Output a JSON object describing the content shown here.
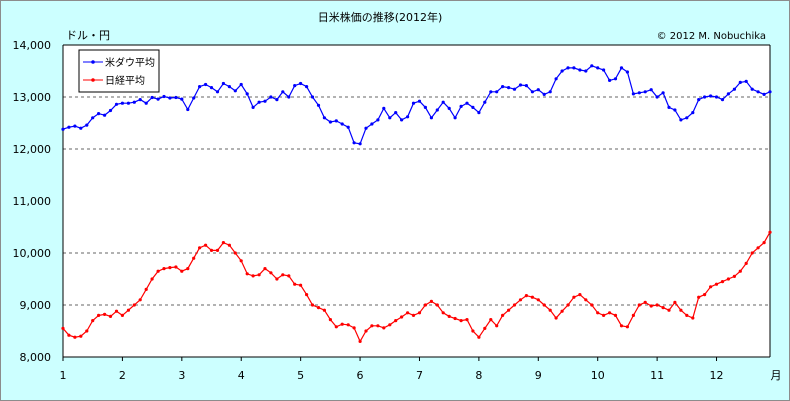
{
  "chart_data": {
    "type": "line",
    "title": "日米株価の推移(2012年)",
    "copyright": "© 2012 M. Nobuchika",
    "ylabel": "ドル・円",
    "xlabel": "月",
    "ylim": [
      8000,
      14000
    ],
    "y_ticks": [
      "8,000",
      "9,000",
      "10,000",
      "11,000",
      "12,000",
      "13,000",
      "14,000"
    ],
    "y_tick_values": [
      8000,
      9000,
      10000,
      11000,
      12000,
      13000,
      14000
    ],
    "x_ticks": [
      "1",
      "2",
      "3",
      "4",
      "5",
      "6",
      "7",
      "8",
      "9",
      "10",
      "11",
      "12"
    ],
    "x_tick_values": [
      1,
      2,
      3,
      4,
      5,
      6,
      7,
      8,
      9,
      10,
      11,
      12
    ],
    "xlim": [
      1,
      12.9
    ],
    "grid": "horizontal dashed at 9,000 / 10,000 / 12,000 / 13,000",
    "legend_position": "top-left",
    "series": [
      {
        "name": "米ダウ平均",
        "color": "#0000ff",
        "x": [
          1.0,
          1.1,
          1.2,
          1.3,
          1.4,
          1.5,
          1.6,
          1.7,
          1.8,
          1.9,
          2.0,
          2.1,
          2.2,
          2.3,
          2.4,
          2.5,
          2.6,
          2.7,
          2.8,
          2.9,
          3.0,
          3.1,
          3.2,
          3.3,
          3.4,
          3.5,
          3.6,
          3.7,
          3.8,
          3.9,
          4.0,
          4.1,
          4.2,
          4.3,
          4.4,
          4.5,
          4.6,
          4.7,
          4.8,
          4.9,
          5.0,
          5.1,
          5.2,
          5.3,
          5.4,
          5.5,
          5.6,
          5.7,
          5.8,
          5.9,
          6.0,
          6.1,
          6.2,
          6.3,
          6.4,
          6.5,
          6.6,
          6.7,
          6.8,
          6.9,
          7.0,
          7.1,
          7.2,
          7.3,
          7.4,
          7.5,
          7.6,
          7.7,
          7.8,
          7.9,
          8.0,
          8.1,
          8.2,
          8.3,
          8.4,
          8.5,
          8.6,
          8.7,
          8.8,
          8.9,
          9.0,
          9.1,
          9.2,
          9.3,
          9.4,
          9.5,
          9.6,
          9.7,
          9.8,
          9.9,
          10.0,
          10.1,
          10.2,
          10.3,
          10.4,
          10.5,
          10.6,
          10.7,
          10.8,
          10.9,
          11.0,
          11.1,
          11.2,
          11.3,
          11.4,
          11.5,
          11.6,
          11.7,
          11.8,
          11.9,
          12.0,
          12.1,
          12.2,
          12.3,
          12.4,
          12.5,
          12.6,
          12.7,
          12.8,
          12.9
        ],
        "values": [
          12380,
          12420,
          12440,
          12400,
          12460,
          12600,
          12680,
          12650,
          12740,
          12860,
          12880,
          12880,
          12900,
          12950,
          12880,
          12990,
          12960,
          13010,
          12980,
          12990,
          12960,
          12760,
          12980,
          13200,
          13240,
          13180,
          13100,
          13260,
          13200,
          13120,
          13240,
          13060,
          12800,
          12900,
          12920,
          13000,
          12950,
          13100,
          13000,
          13220,
          13260,
          13200,
          13000,
          12840,
          12600,
          12520,
          12540,
          12480,
          12420,
          12120,
          12100,
          12400,
          12480,
          12560,
          12780,
          12600,
          12700,
          12560,
          12620,
          12880,
          12920,
          12800,
          12600,
          12750,
          12900,
          12780,
          12600,
          12820,
          12880,
          12800,
          12700,
          12900,
          13100,
          13100,
          13200,
          13180,
          13150,
          13230,
          13220,
          13100,
          13140,
          13050,
          13100,
          13350,
          13500,
          13560,
          13560,
          13520,
          13500,
          13600,
          13560,
          13520,
          13320,
          13350,
          13560,
          13480,
          13060,
          13080,
          13100,
          13140,
          13000,
          13080,
          12800,
          12750,
          12560,
          12600,
          12700,
          12950,
          13000,
          13020,
          13000,
          12950,
          13060,
          13150,
          13280,
          13300,
          13150,
          13100,
          13050,
          13100
        ]
      },
      {
        "name": "日経平均",
        "color": "#ff0000",
        "x": [
          1.0,
          1.1,
          1.2,
          1.3,
          1.4,
          1.5,
          1.6,
          1.7,
          1.8,
          1.9,
          2.0,
          2.1,
          2.2,
          2.3,
          2.4,
          2.5,
          2.6,
          2.7,
          2.8,
          2.9,
          3.0,
          3.1,
          3.2,
          3.3,
          3.4,
          3.5,
          3.6,
          3.7,
          3.8,
          3.9,
          4.0,
          4.1,
          4.2,
          4.3,
          4.4,
          4.5,
          4.6,
          4.7,
          4.8,
          4.9,
          5.0,
          5.1,
          5.2,
          5.3,
          5.4,
          5.5,
          5.6,
          5.7,
          5.8,
          5.9,
          6.0,
          6.1,
          6.2,
          6.3,
          6.4,
          6.5,
          6.6,
          6.7,
          6.8,
          6.9,
          7.0,
          7.1,
          7.2,
          7.3,
          7.4,
          7.5,
          7.6,
          7.7,
          7.8,
          7.9,
          8.0,
          8.1,
          8.2,
          8.3,
          8.4,
          8.5,
          8.6,
          8.7,
          8.8,
          8.9,
          9.0,
          9.1,
          9.2,
          9.3,
          9.4,
          9.5,
          9.6,
          9.7,
          9.8,
          9.9,
          10.0,
          10.1,
          10.2,
          10.3,
          10.4,
          10.5,
          10.6,
          10.7,
          10.8,
          10.9,
          11.0,
          11.1,
          11.2,
          11.3,
          11.4,
          11.5,
          11.6,
          11.7,
          11.8,
          11.9,
          12.0,
          12.1,
          12.2,
          12.3,
          12.4,
          12.5,
          12.6,
          12.7,
          12.8,
          12.9
        ],
        "values": [
          8550,
          8420,
          8380,
          8400,
          8500,
          8700,
          8800,
          8820,
          8780,
          8880,
          8800,
          8900,
          9000,
          9100,
          9300,
          9500,
          9650,
          9700,
          9720,
          9730,
          9650,
          9700,
          9900,
          10100,
          10150,
          10050,
          10050,
          10200,
          10150,
          10000,
          9850,
          9600,
          9560,
          9580,
          9700,
          9620,
          9500,
          9580,
          9560,
          9400,
          9380,
          9200,
          9000,
          8950,
          8900,
          8720,
          8580,
          8630,
          8620,
          8560,
          8300,
          8500,
          8600,
          8600,
          8560,
          8620,
          8700,
          8770,
          8850,
          8800,
          8850,
          9000,
          9070,
          9000,
          8850,
          8780,
          8740,
          8700,
          8720,
          8500,
          8380,
          8550,
          8720,
          8600,
          8800,
          8900,
          9000,
          9100,
          9180,
          9150,
          9100,
          9000,
          8900,
          8750,
          8880,
          9000,
          9150,
          9200,
          9100,
          9000,
          8850,
          8800,
          8850,
          8800,
          8600,
          8580,
          8800,
          9000,
          9050,
          8980,
          9000,
          8950,
          8900,
          9050,
          8900,
          8800,
          8750,
          9150,
          9200,
          9350,
          9400,
          9450,
          9500,
          9550,
          9650,
          9800,
          10000,
          10100,
          10200,
          10400
        ]
      }
    ]
  }
}
